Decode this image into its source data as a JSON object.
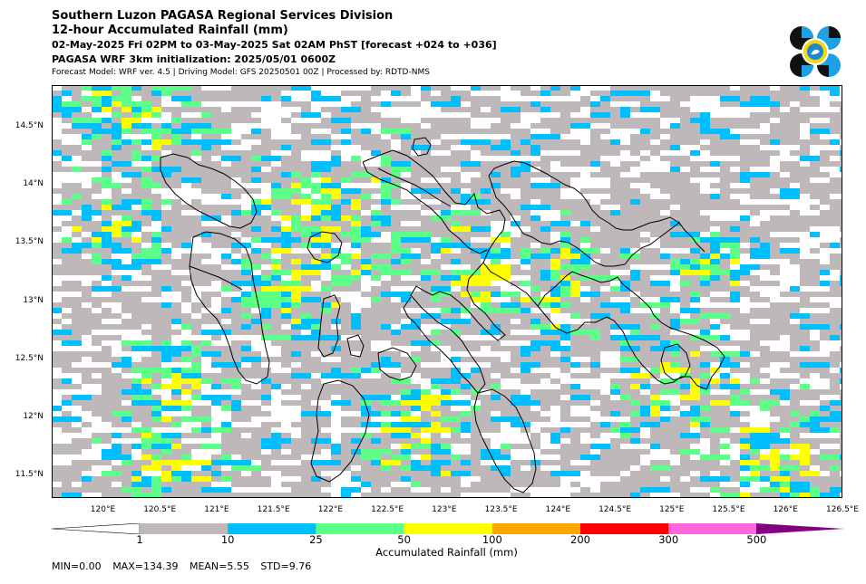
{
  "header": {
    "title": "Southern Luzon PAGASA Regional Services Division",
    "subtitle": "12-hour Accumulated Rainfall (mm)",
    "period": "02-May-2025 Fri 02PM to 03-May-2025 Sat 02AM PhST [forecast +024 to +036]",
    "init": "PAGASA WRF 3km initialization: 2025/05/01 0600Z",
    "model": "Forecast Model: WRF ver. 4.5 | Driving Model: GFS 20250501 00Z | Processed by: RDTD-NMS"
  },
  "map": {
    "lon_labels": [
      "120°E",
      "120.5°E",
      "121°E",
      "121.5°E",
      "122°E",
      "122.5°E",
      "123°E",
      "123.5°E",
      "124°E",
      "124.5°E",
      "125°E",
      "125.5°E",
      "126°E",
      "126.5°E"
    ],
    "lat_labels": [
      "14.5°N",
      "14°N",
      "13.5°N",
      "13°N",
      "12.5°N",
      "12°N",
      "11.5°N"
    ],
    "lon_range": [
      119.55,
      126.5
    ],
    "lat_range": [
      11.3,
      14.85
    ]
  },
  "colorbar": {
    "label": "Accumulated Rainfall (mm)",
    "ticks": [
      "1",
      "10",
      "25",
      "50",
      "100",
      "200",
      "300",
      "500"
    ],
    "colors": [
      "#bfb8bb",
      "#00bfff",
      "#5cff87",
      "#ffff00",
      "#ffa500",
      "#ff0000",
      "#ff69e0",
      "#800080"
    ]
  },
  "stats": {
    "min": "MIN=0.00",
    "max": "MAX=134.39",
    "mean": "MEAN=5.55",
    "std": "STD=9.76"
  }
}
